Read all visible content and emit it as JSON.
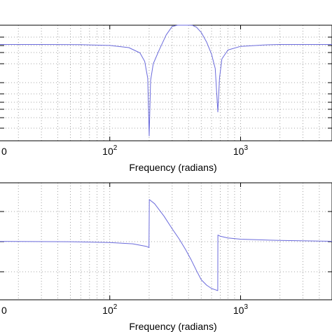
{
  "chart_data": [
    {
      "type": "line",
      "xlabel": "Frequency (radians)",
      "ylabel": "",
      "xscale": "log",
      "xlim": [
        10,
        5000
      ],
      "ylim": [
        -40,
        8
      ],
      "xticks": [
        {
          "base": "0",
          "exp": ""
        },
        {
          "base": "10",
          "exp": "2"
        },
        {
          "base": "10",
          "exp": "3"
        }
      ],
      "grid": "on (major and minor, dotted)",
      "series": [
        {
          "color": "#6b6bdc",
          "x": [
            10,
            30,
            60,
            100,
            140,
            170,
            185,
            195,
            200,
            205,
            215,
            240,
            270,
            300,
            330,
            360,
            400,
            430,
            460,
            500,
            550,
            600,
            640,
            670,
            690,
            720,
            800,
            1000,
            1500,
            2000,
            5000
          ],
          "y": [
            0,
            0,
            -0.1,
            -0.4,
            -1.3,
            -3.5,
            -7,
            -14,
            -38,
            -15,
            -8,
            -2,
            4,
            7.5,
            8,
            8,
            8,
            7.9,
            7.2,
            5,
            1,
            -4,
            -10,
            -28,
            -14,
            -6,
            -2.3,
            -0.8,
            -0.2,
            0,
            0
          ]
        }
      ]
    },
    {
      "type": "line",
      "xlabel": "Frequency (radians)",
      "ylabel": "",
      "xscale": "log",
      "xlim": [
        10,
        5000
      ],
      "ylim": [
        -140,
        140
      ],
      "xticks": [
        {
          "base": "0",
          "exp": ""
        },
        {
          "base": "10",
          "exp": "2"
        },
        {
          "base": "10",
          "exp": "3"
        }
      ],
      "grid": "on (major and minor, dotted)",
      "series": [
        {
          "color": "#6b6bdc",
          "x": [
            10,
            50,
            100,
            150,
            190,
            199.5,
            200.5,
            220,
            260,
            300,
            340,
            380,
            420,
            460,
            500,
            550,
            600,
            640,
            669,
            671,
            700,
            800,
            1000,
            2000,
            5000
          ],
          "y": [
            0,
            -1,
            -3,
            -6,
            -12,
            -15,
            100,
            90,
            60,
            30,
            5,
            -20,
            -45,
            -70,
            -92,
            -105,
            -113,
            -116,
            -118,
            15,
            12,
            8,
            5,
            2,
            0
          ]
        }
      ]
    }
  ]
}
